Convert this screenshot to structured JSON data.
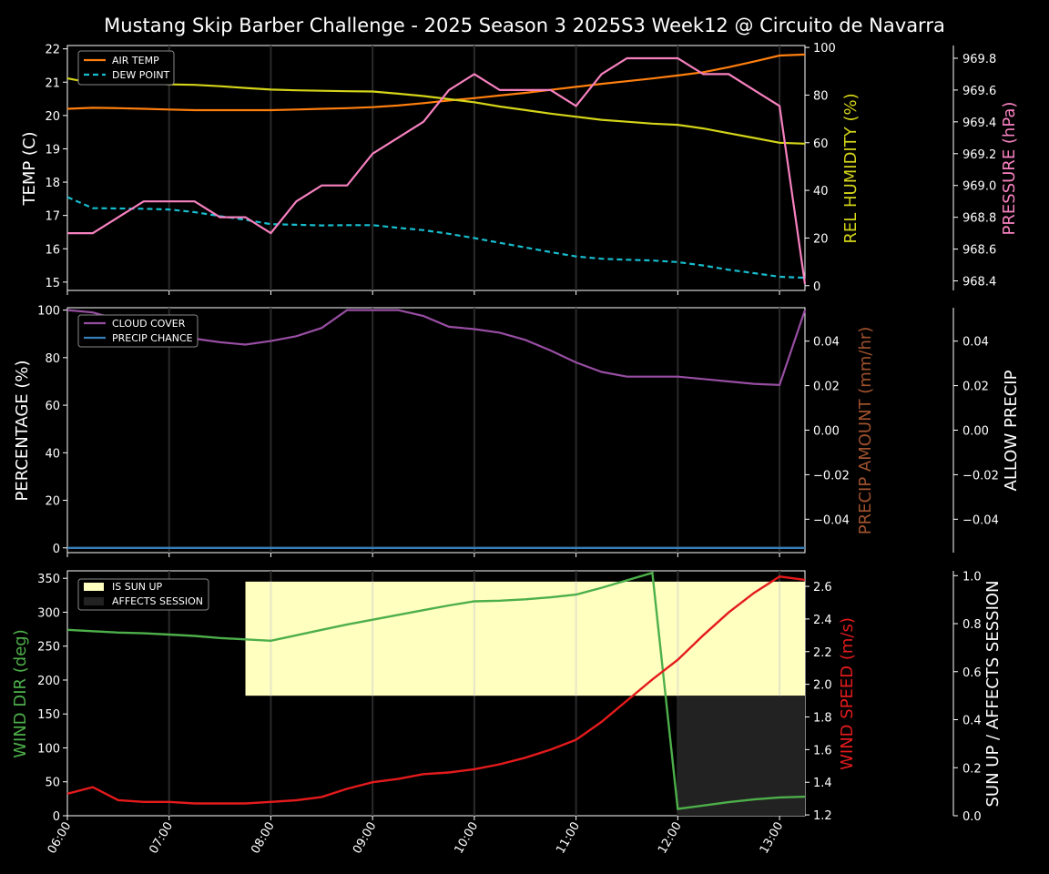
{
  "title": "Mustang Skip Barber  Challenge - 2025 Season 3 2025S3 Week12 @ Circuito de Navarra",
  "colors": {
    "air_temp": "#ff7f0e",
    "dew_point": "#17becf",
    "humidity": "#d4d419",
    "pressure": "#f781bf",
    "cloud": "#984ea3",
    "precip": "#377eb8",
    "wind_dir": "#4daf4a",
    "wind_speed": "#e41a1c",
    "sun_up": "#ffffc0",
    "affects": "#222222",
    "humidity_label": "#d4d419",
    "pressure_label": "#f781bf",
    "precip_amount_label": "#a0522d",
    "wind_dir_label": "#4daf4a",
    "wind_speed_label": "#e41a1c"
  },
  "chart_data": [
    {
      "type": "line",
      "id": "temp",
      "xlabel": "",
      "x_ticks": [
        "06:00",
        "07:00",
        "08:00",
        "09:00",
        "10:00",
        "11:00",
        "12:00",
        "13:00"
      ],
      "x": [
        0,
        0.25,
        0.5,
        0.75,
        1,
        1.25,
        1.5,
        1.75,
        2,
        2.25,
        2.5,
        2.75,
        3,
        3.25,
        3.5,
        3.75,
        4,
        4.25,
        4.5,
        4.75,
        5,
        5.25,
        5.5,
        5.75,
        6,
        6.25,
        6.5,
        6.75,
        7,
        7.25
      ],
      "ylabel": "TEMP (C)",
      "ylim": [
        14.75,
        22.1
      ],
      "yticks": [
        15,
        16,
        17,
        18,
        19,
        20,
        21,
        22
      ],
      "y2label": "REL HUMIDITY (%)",
      "y2lim": [
        -2,
        100.8
      ],
      "y2ticks": [
        0,
        20,
        40,
        60,
        80,
        100
      ],
      "y3label": "PRESSURE (hPa)",
      "y3lim": [
        968.34,
        969.88
      ],
      "y3ticks": [
        "968.4",
        "968.6",
        "968.8",
        "969.0",
        "969.2",
        "969.4",
        "969.6",
        "969.8"
      ],
      "legend_position": "top-left",
      "series": [
        {
          "name": "AIR TEMP",
          "axis": "left",
          "style": "solid",
          "values": [
            20.2,
            20.23,
            20.22,
            20.2,
            20.18,
            20.16,
            20.16,
            20.16,
            20.16,
            20.18,
            20.2,
            20.22,
            20.25,
            20.3,
            20.37,
            20.45,
            20.52,
            20.6,
            20.68,
            20.77,
            20.86,
            20.95,
            21.03,
            21.11,
            21.2,
            21.3,
            21.45,
            21.62,
            21.8,
            21.83
          ]
        },
        {
          "name": "DEW POINT",
          "axis": "left",
          "style": "dashed",
          "values": [
            17.55,
            17.22,
            17.21,
            17.2,
            17.18,
            17.1,
            16.98,
            16.87,
            16.74,
            16.72,
            16.7,
            16.71,
            16.71,
            16.63,
            16.56,
            16.45,
            16.32,
            16.18,
            16.04,
            15.9,
            15.77,
            15.7,
            15.67,
            15.65,
            15.6,
            15.5,
            15.37,
            15.27,
            15.16,
            15.13
          ]
        },
        {
          "name": "REL HUMIDITY",
          "axis": "right",
          "style": "solid",
          "in_legend": false,
          "values": [
            87,
            85,
            85,
            85,
            84.5,
            84.3,
            83.7,
            83,
            82.3,
            82,
            81.8,
            81.6,
            81.5,
            80.6,
            79.6,
            78.3,
            77,
            75.2,
            73.7,
            72.2,
            70.9,
            69.6,
            68.8,
            68,
            67.5,
            66,
            64,
            62,
            60,
            59.6
          ]
        },
        {
          "name": "PRESSURE",
          "axis": "right2",
          "style": "solid",
          "in_legend": false,
          "values": [
            968.7,
            968.7,
            968.8,
            968.9,
            968.9,
            968.9,
            968.8,
            968.8,
            968.7,
            968.9,
            969.0,
            969.0,
            969.2,
            969.3,
            969.4,
            969.6,
            969.7,
            969.6,
            969.6,
            969.6,
            969.5,
            969.7,
            969.8,
            969.8,
            969.8,
            969.7,
            969.7,
            969.6,
            969.5,
            968.38
          ]
        }
      ]
    },
    {
      "type": "line",
      "id": "precip",
      "ylabel": "PERCENTAGE (%)",
      "ylim": [
        -2,
        101
      ],
      "yticks": [
        0,
        20,
        40,
        60,
        80,
        100
      ],
      "y2label": "PRECIP AMOUNT (mm/hr)",
      "y2lim": [
        -0.055,
        0.055
      ],
      "y2ticks": [
        "−0.04",
        "−0.02",
        "0.00",
        "0.02",
        "0.04"
      ],
      "y3label": "ALLOW PRECIP",
      "y3lim": [
        -0.055,
        0.055
      ],
      "y3ticks": [
        "−0.04",
        "−0.02",
        "0.00",
        "0.02",
        "0.04"
      ],
      "legend_position": "top-left",
      "series": [
        {
          "name": "CLOUD COVER",
          "values": [
            100,
            99,
            96,
            92,
            89,
            88,
            86.5,
            85.5,
            87,
            89,
            92.5,
            100,
            100,
            100,
            97.5,
            93,
            92,
            90.5,
            87.5,
            83,
            78,
            74,
            72,
            72,
            72,
            71,
            70,
            69,
            68.5,
            100
          ]
        },
        {
          "name": "PRECIP CHANCE",
          "values": [
            0,
            0,
            0,
            0,
            0,
            0,
            0,
            0,
            0,
            0,
            0,
            0,
            0,
            0,
            0,
            0,
            0,
            0,
            0,
            0,
            0,
            0,
            0,
            0,
            0,
            0,
            0,
            0,
            0,
            0
          ]
        }
      ]
    },
    {
      "type": "line",
      "id": "wind",
      "ylabel": "WIND DIR (deg)",
      "ylim": [
        0,
        361
      ],
      "yticks": [
        0,
        50,
        100,
        150,
        200,
        250,
        300,
        350
      ],
      "y2label": "WIND SPEED (m/s)",
      "y2lim": [
        1.195,
        2.695
      ],
      "y2ticks": [
        "1.2",
        "1.4",
        "1.6",
        "1.8",
        "2.0",
        "2.2",
        "2.4",
        "2.6"
      ],
      "y3label": "SUN UP / AFFECTS SESSION",
      "y3lim": [
        0,
        1.02
      ],
      "y3ticks": [
        "0.0",
        "0.2",
        "0.4",
        "0.6",
        "0.8",
        "1.0"
      ],
      "legend_position": "top-left",
      "areas": [
        {
          "name": "IS SUN UP",
          "x_start": 1.75,
          "x_end": 7.25,
          "y_from": 0.5,
          "y_to": 0.975
        },
        {
          "name": "AFFECTS SESSION",
          "x_start": 6,
          "x_end": 7.25,
          "y_from": 0,
          "y_to": 0.5
        }
      ],
      "series": [
        {
          "name": "WIND DIR",
          "axis": "left",
          "values": [
            274,
            272,
            270,
            269,
            267,
            265,
            262,
            260,
            258,
            266,
            274,
            282,
            289,
            296,
            303,
            310,
            316,
            317,
            319,
            322,
            326,
            336,
            347,
            358,
            10,
            15,
            20,
            24,
            27,
            28
          ]
        },
        {
          "name": "WIND SPEED",
          "axis": "right",
          "values": [
            1.33,
            1.37,
            1.29,
            1.28,
            1.28,
            1.27,
            1.27,
            1.27,
            1.28,
            1.29,
            1.31,
            1.36,
            1.4,
            1.42,
            1.45,
            1.46,
            1.48,
            1.51,
            1.55,
            1.6,
            1.66,
            1.77,
            1.9,
            2.03,
            2.15,
            2.3,
            2.44,
            2.56,
            2.66,
            2.64
          ]
        }
      ]
    }
  ]
}
